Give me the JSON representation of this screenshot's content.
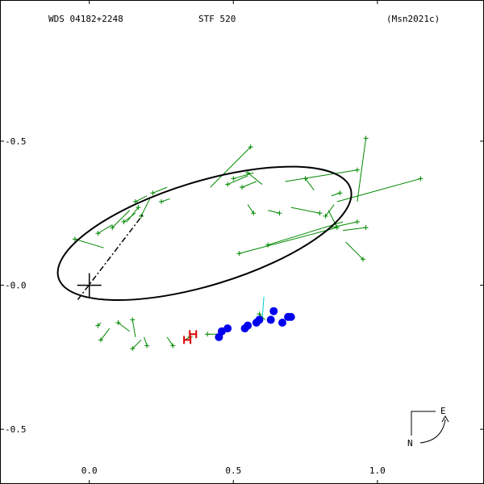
{
  "header": {
    "wds": "WDS 04182+2248",
    "disc": "STF 520",
    "ref": "(Msn2021c)"
  },
  "compass": {
    "east": "E",
    "north": "N"
  },
  "chart_data": {
    "type": "scatter",
    "title": "",
    "xlabel": "",
    "ylabel": "",
    "xlim": [
      -0.31,
      1.37
    ],
    "ylim": [
      -0.69,
      0.99
    ],
    "x_ticks": [
      {
        "v": 0.0,
        "label": "0.0"
      },
      {
        "v": 0.5,
        "label": "0.5"
      },
      {
        "v": 1.0,
        "label": "1.0"
      }
    ],
    "y_ticks": [
      {
        "v": 0.5,
        "label": "-0.5"
      },
      {
        "v": 0.0,
        "label": "-0.0"
      },
      {
        "v": -0.5,
        "label": "-0.5"
      }
    ],
    "orbit": {
      "center": [
        0.4,
        0.18
      ],
      "semi_major": 0.53,
      "semi_minor": 0.18,
      "angle_deg": 17
    },
    "primary": [
      0.0,
      0.0
    ],
    "node_line": [
      [
        -0.04,
        -0.05
      ],
      [
        0.19,
        0.25
      ]
    ],
    "colors": {
      "orbit": "#000000",
      "observation": "#008800",
      "speckle": "#0000ee",
      "highlight": "#dd0000",
      "residual_alt": "#00cccc"
    },
    "observations": [
      [
        0.96,
        0.51,
        0.93,
        0.29
      ],
      [
        0.56,
        0.48,
        0.42,
        0.34
      ],
      [
        0.93,
        0.4,
        0.68,
        0.36
      ],
      [
        1.15,
        0.37,
        0.86,
        0.29
      ],
      [
        0.75,
        0.37,
        0.78,
        0.33
      ],
      [
        0.87,
        0.32,
        0.84,
        0.31
      ],
      [
        0.93,
        0.22,
        0.84,
        0.2
      ],
      [
        0.96,
        0.2,
        0.88,
        0.19
      ],
      [
        0.8,
        0.25,
        0.7,
        0.27
      ],
      [
        0.66,
        0.25,
        0.62,
        0.26
      ],
      [
        0.57,
        0.25,
        0.55,
        0.28
      ],
      [
        0.52,
        0.11,
        0.86,
        0.2
      ],
      [
        0.62,
        0.14,
        0.88,
        0.22
      ],
      [
        0.95,
        0.09,
        0.89,
        0.15
      ],
      [
        0.55,
        0.39,
        0.6,
        0.35
      ],
      [
        0.53,
        0.34,
        0.58,
        0.36
      ],
      [
        0.5,
        0.37,
        0.57,
        0.39
      ],
      [
        0.48,
        0.35,
        0.55,
        0.38
      ],
      [
        0.82,
        0.24,
        0.85,
        0.28
      ],
      [
        0.86,
        0.2,
        0.83,
        0.26
      ],
      [
        -0.05,
        0.16,
        0.05,
        0.13
      ],
      [
        0.03,
        0.18,
        0.08,
        0.21
      ],
      [
        0.12,
        0.22,
        0.16,
        0.25
      ],
      [
        0.16,
        0.29,
        0.2,
        0.31
      ],
      [
        0.22,
        0.32,
        0.27,
        0.34
      ],
      [
        0.25,
        0.29,
        0.28,
        0.3
      ],
      [
        0.17,
        0.27,
        0.13,
        0.22
      ],
      [
        0.18,
        0.24,
        0.21,
        0.3
      ],
      [
        0.08,
        0.2,
        0.14,
        0.26
      ],
      [
        0.03,
        -0.14,
        0.04,
        -0.13
      ],
      [
        0.04,
        -0.19,
        0.07,
        -0.15
      ],
      [
        0.1,
        -0.13,
        0.14,
        -0.16
      ],
      [
        0.15,
        -0.12,
        0.16,
        -0.18
      ],
      [
        0.15,
        -0.22,
        0.18,
        -0.19
      ],
      [
        0.2,
        -0.21,
        0.19,
        -0.18
      ],
      [
        0.29,
        -0.21,
        0.27,
        -0.18
      ],
      [
        0.35,
        -0.18,
        0.33,
        -0.19
      ],
      [
        0.41,
        -0.17,
        0.45,
        -0.17
      ],
      [
        0.59,
        -0.1,
        0.61,
        -0.12
      ]
    ],
    "speckle_points": [
      [
        0.45,
        -0.18
      ],
      [
        0.46,
        -0.16
      ],
      [
        0.48,
        -0.15
      ],
      [
        0.54,
        -0.15
      ],
      [
        0.55,
        -0.14
      ],
      [
        0.58,
        -0.13
      ],
      [
        0.59,
        -0.12
      ],
      [
        0.63,
        -0.12
      ],
      [
        0.64,
        -0.09
      ],
      [
        0.67,
        -0.13
      ],
      [
        0.69,
        -0.11
      ],
      [
        0.7,
        -0.11
      ]
    ],
    "highlight_points": [
      [
        0.34,
        -0.19
      ],
      [
        0.36,
        -0.17
      ]
    ]
  }
}
